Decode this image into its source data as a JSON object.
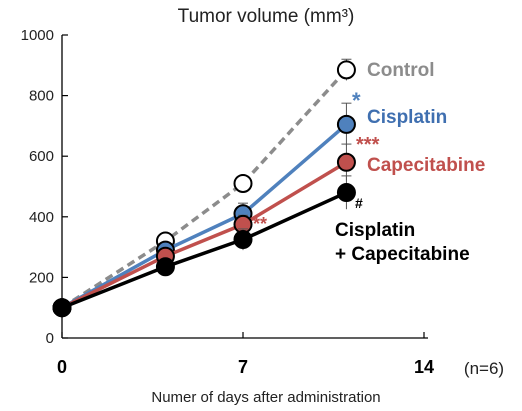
{
  "chart_data": {
    "type": "line",
    "title": "Tumor volume (mm³)",
    "xlabel": "Numer of days after administration",
    "ylabel": "",
    "note": "(n=6)",
    "xlim": [
      0,
      14
    ],
    "ylim": [
      0,
      1000
    ],
    "x_ticks": [
      0,
      7,
      14
    ],
    "y_ticks": [
      0,
      200,
      400,
      600,
      800,
      1000
    ],
    "grid": false,
    "legend": "inline-right",
    "series": [
      {
        "name": "Control",
        "color": "#8c8c8c",
        "style": "dashed",
        "marker_fill": "#ffffff",
        "x": [
          0,
          4,
          7,
          11
        ],
        "y": [
          100,
          320,
          510,
          885
        ],
        "err": [
          0,
          20,
          20,
          35
        ],
        "label_lines": [
          "Control"
        ],
        "label_color": "#8c8c8c",
        "significance": ""
      },
      {
        "name": "Cisplatin",
        "color": "#4f81bd",
        "style": "solid",
        "marker_fill": "#4f81bd",
        "x": [
          0,
          4,
          7,
          11
        ],
        "y": [
          100,
          290,
          410,
          705
        ],
        "err": [
          0,
          20,
          35,
          70
        ],
        "label_lines": [
          "Cisplatin"
        ],
        "label_color": "#3f6fb0",
        "significance": "*",
        "significance_color": "#4f81bd"
      },
      {
        "name": "Capecitabine",
        "color": "#c0504d",
        "style": "solid",
        "marker_fill": "#c0504d",
        "x": [
          0,
          4,
          7,
          11
        ],
        "y": [
          100,
          270,
          375,
          580
        ],
        "err": [
          0,
          20,
          30,
          60
        ],
        "label_lines": [
          "Capecitabine"
        ],
        "label_color": "#c0504d",
        "significance": "***",
        "significance_color": "#c0504d",
        "significance_day7": "**"
      },
      {
        "name": "Cisplatin + Capecitabine",
        "color": "#000000",
        "style": "solid",
        "marker_fill": "#000000",
        "x": [
          0,
          4,
          7,
          11
        ],
        "y": [
          100,
          235,
          325,
          480
        ],
        "err": [
          0,
          20,
          35,
          55
        ],
        "label_lines": [
          "Cisplatin",
          "+ Capecitabine"
        ],
        "label_color": "#000000",
        "significance": "#",
        "significance_color": "#000000"
      }
    ]
  }
}
